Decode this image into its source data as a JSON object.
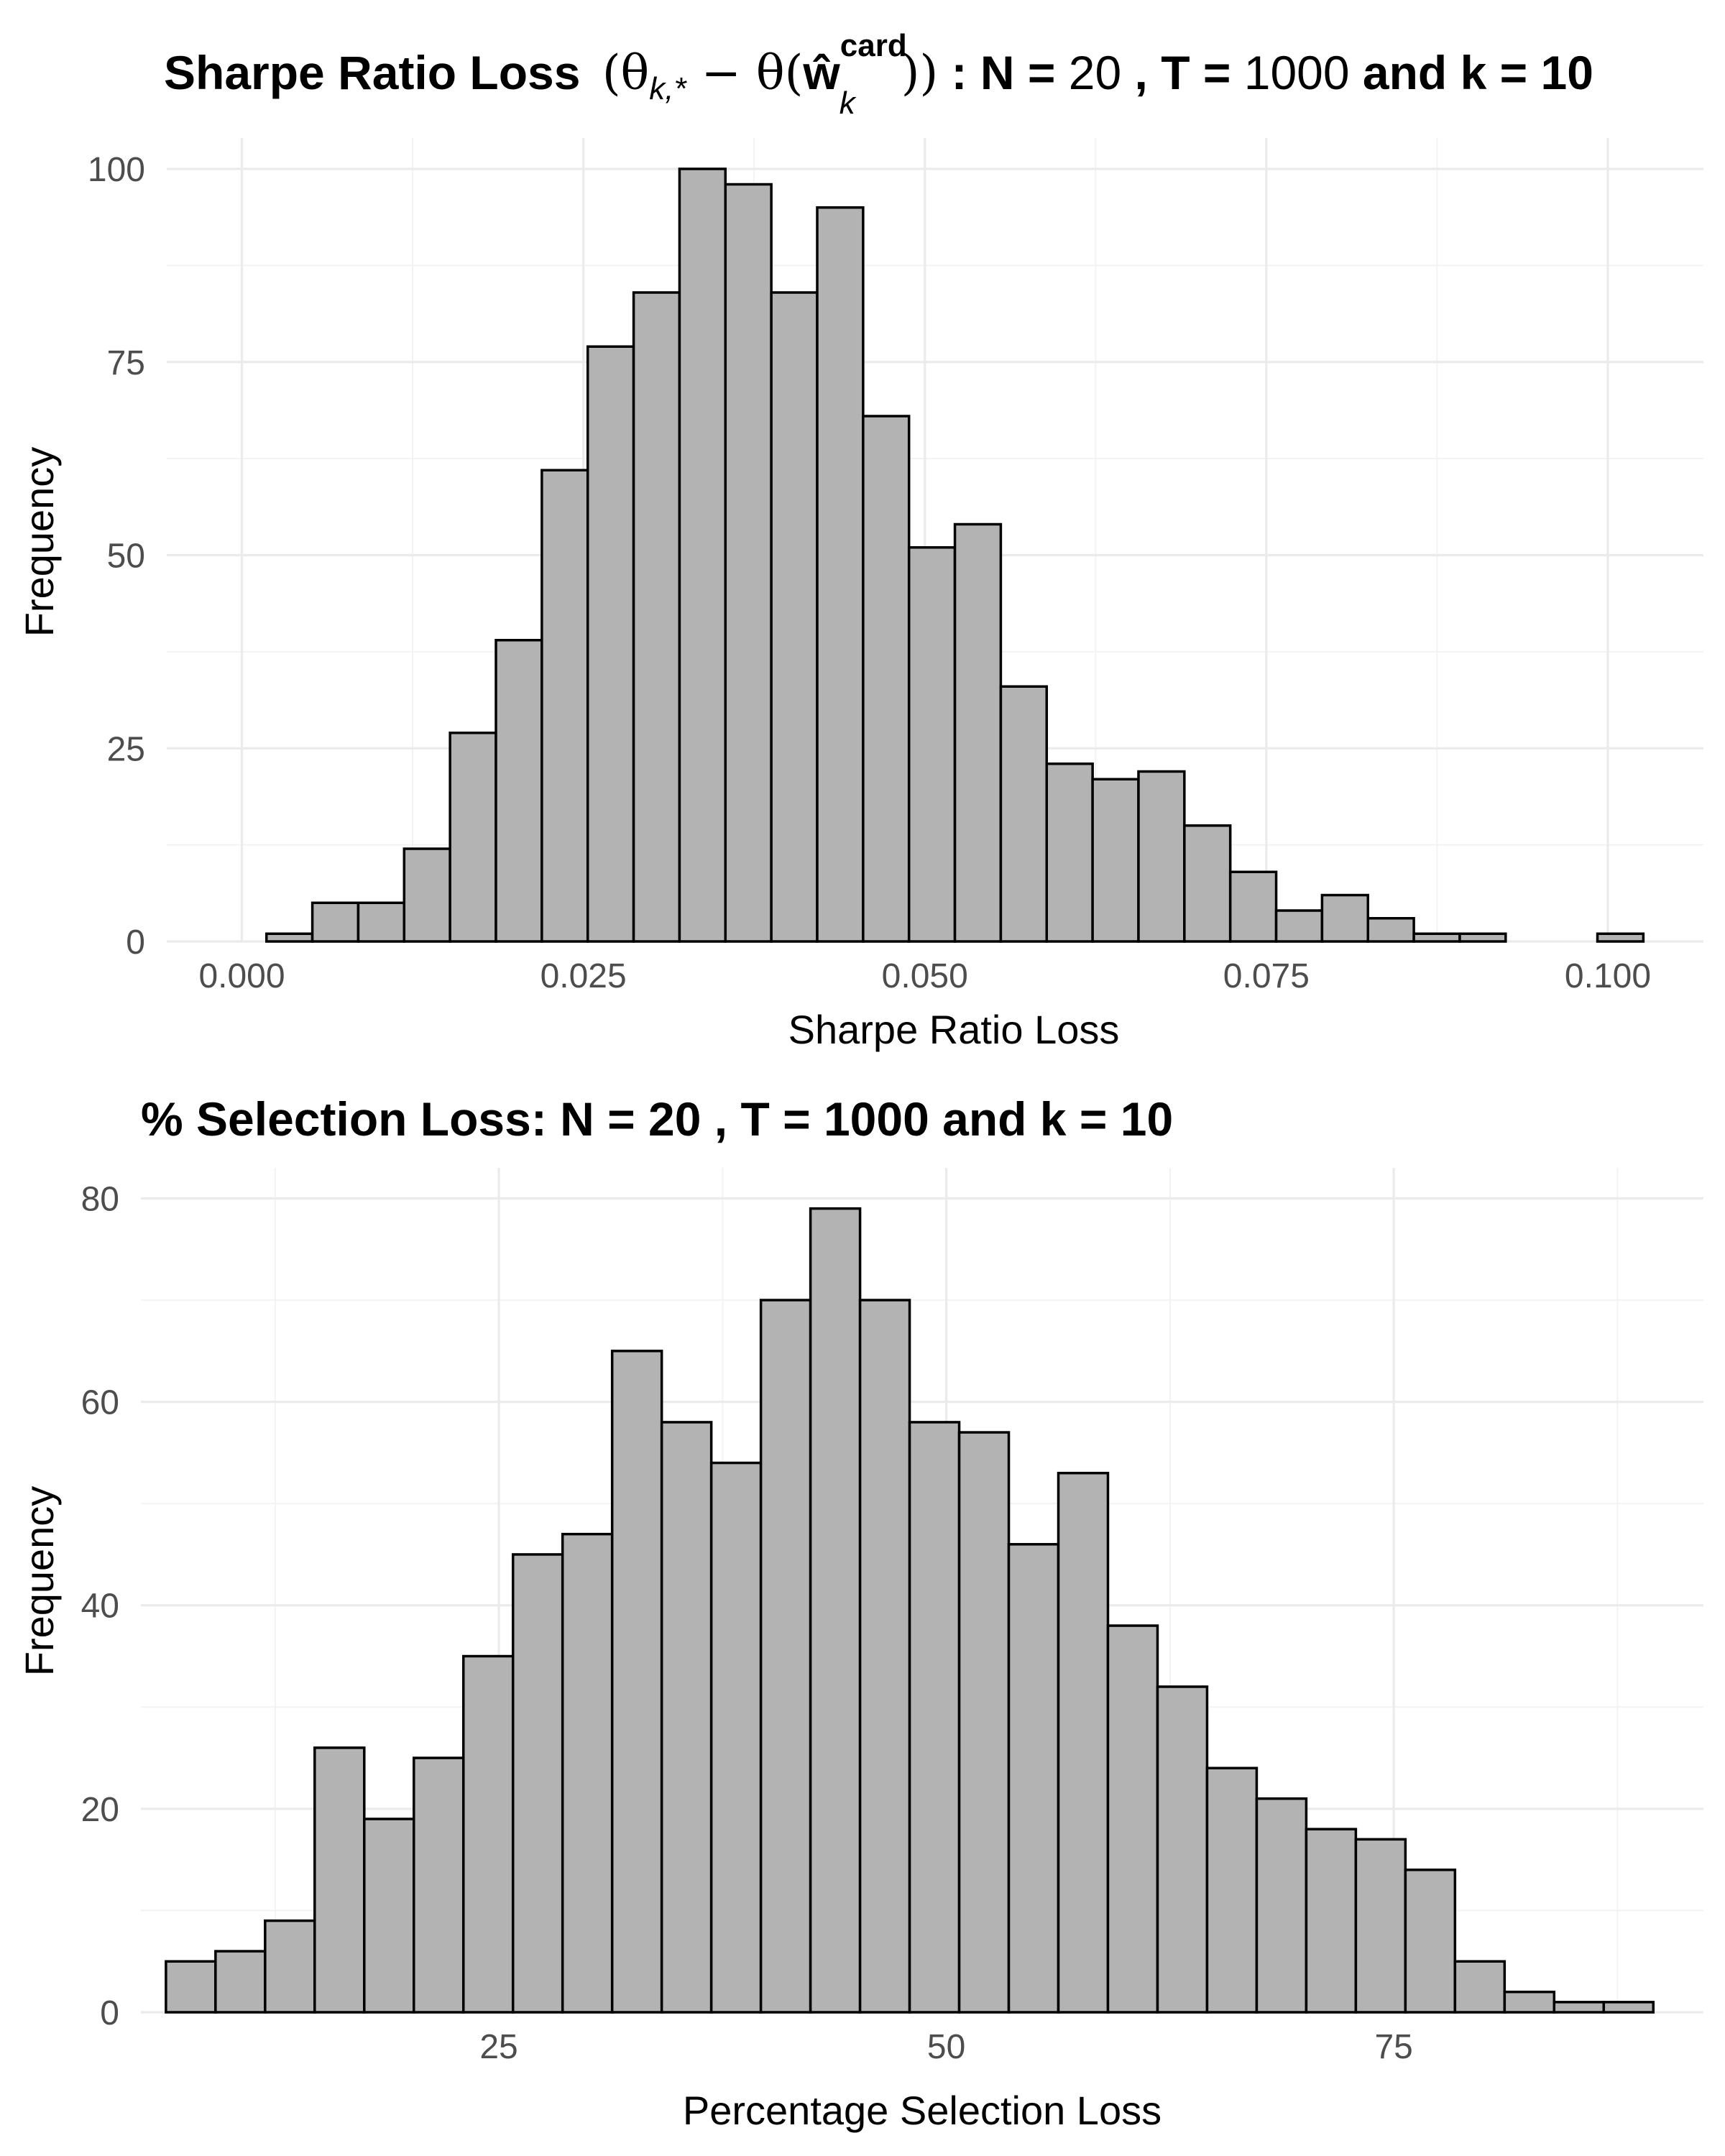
{
  "chart_data": [
    {
      "type": "bar",
      "title_parts": {
        "lead": "Sharpe Ratio Loss",
        "formula_open": "(θ",
        "theta_sub": "k,*",
        "formula_minus": " − θ(",
        "w_hat": "ŵ",
        "w_sup": "card",
        "w_sub": "k",
        "formula_close": "))",
        "colon": " : ",
        "n_label": "N = ",
        "n_value": "20",
        "t_sep": " , ",
        "t_label": "T = ",
        "t_value": "1000",
        "k_label": "  and k = ",
        "k_value": "10"
      },
      "xlabel": "Sharpe Ratio Loss",
      "ylabel": "Frequency",
      "xlim": [
        -0.0055,
        0.107
      ],
      "ylim": [
        0,
        104
      ],
      "x_ticks": [
        0.0,
        0.025,
        0.05,
        0.075,
        0.1
      ],
      "x_tick_labels": [
        "0.000",
        "0.025",
        "0.050",
        "0.075",
        "0.100"
      ],
      "y_ticks": [
        0,
        25,
        50,
        75,
        100
      ],
      "y_tick_labels": [
        "0",
        "25",
        "50",
        "75",
        "100"
      ],
      "bin_start": 0.0018,
      "bin_width": 0.00336,
      "values": [
        1,
        5,
        5,
        12,
        27,
        39,
        61,
        77,
        84,
        100,
        98,
        84,
        95,
        68,
        51,
        54,
        33,
        23,
        21,
        22,
        15,
        9,
        4,
        6,
        3,
        1,
        1,
        0,
        0,
        1
      ],
      "grid": true,
      "bar_fill": "#b3b3b3",
      "bar_stroke": "#000000"
    },
    {
      "type": "bar",
      "title": "% Selection Loss: N = 20 , T = 1000 and k = 10",
      "xlabel": "Percentage Selection Loss",
      "ylabel": "Frequency",
      "xlim": [
        5.0,
        92.3
      ],
      "ylim": [
        0,
        83
      ],
      "x_ticks": [
        25,
        50,
        75
      ],
      "x_tick_labels": [
        "25",
        "50",
        "75"
      ],
      "y_ticks": [
        0,
        20,
        40,
        60,
        80
      ],
      "y_tick_labels": [
        "0",
        "20",
        "40",
        "60",
        "80"
      ],
      "bin_start": 6.4,
      "bin_width": 2.77,
      "values": [
        5,
        6,
        9,
        26,
        19,
        25,
        35,
        45,
        47,
        65,
        58,
        54,
        70,
        79,
        70,
        58,
        57,
        46,
        53,
        38,
        32,
        24,
        21,
        18,
        17,
        14,
        5,
        2,
        1,
        1
      ],
      "grid": true,
      "bar_fill": "#b3b3b3",
      "bar_stroke": "#000000"
    }
  ]
}
